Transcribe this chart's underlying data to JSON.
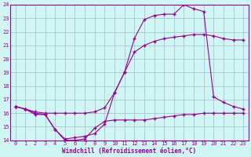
{
  "xlabel": "Windchill (Refroidissement éolien,°C)",
  "xlim": [
    -0.5,
    23.5
  ],
  "ylim": [
    14,
    24
  ],
  "yticks": [
    14,
    15,
    16,
    17,
    18,
    19,
    20,
    21,
    22,
    23,
    24
  ],
  "xticks": [
    0,
    1,
    2,
    3,
    4,
    5,
    6,
    7,
    8,
    9,
    10,
    11,
    12,
    13,
    14,
    15,
    16,
    17,
    18,
    19,
    20,
    21,
    22,
    23
  ],
  "line_color": "#990099",
  "background_color": "#cff5f5",
  "grid_color": "#a8b8cc",
  "line1_x": [
    0,
    1,
    2,
    3,
    4,
    5,
    6,
    7,
    8,
    9,
    10,
    11,
    12,
    13,
    14,
    15,
    16,
    17,
    18,
    19,
    20,
    21,
    22,
    23
  ],
  "line1_y": [
    16.5,
    16.3,
    15.9,
    15.9,
    14.8,
    14.0,
    14.0,
    14.1,
    14.9,
    15.4,
    15.5,
    15.5,
    15.5,
    15.5,
    15.6,
    15.7,
    15.8,
    15.9,
    15.9,
    16.0,
    16.0,
    16.0,
    16.0,
    16.0
  ],
  "line2_x": [
    0,
    1,
    2,
    3,
    4,
    5,
    6,
    7,
    8,
    9,
    10,
    11,
    12,
    13,
    14,
    15,
    16,
    17,
    18,
    19,
    20,
    21,
    22,
    23
  ],
  "line2_y": [
    16.5,
    16.3,
    16.1,
    16.0,
    16.0,
    16.0,
    16.0,
    16.0,
    16.1,
    16.4,
    17.5,
    19.0,
    20.5,
    21.0,
    21.3,
    21.5,
    21.6,
    21.7,
    21.8,
    21.8,
    21.7,
    21.5,
    21.4,
    21.4
  ],
  "line3_x": [
    0,
    1,
    2,
    3,
    4,
    5,
    6,
    7,
    8,
    9,
    10,
    11,
    12,
    13,
    14,
    15,
    16,
    17,
    18,
    19,
    20,
    21,
    22,
    23
  ],
  "line3_y": [
    16.5,
    16.3,
    16.0,
    15.9,
    14.8,
    14.1,
    14.2,
    14.3,
    14.5,
    15.2,
    17.5,
    19.0,
    21.5,
    22.9,
    23.2,
    23.3,
    23.3,
    24.0,
    23.7,
    23.5,
    17.2,
    16.8,
    16.5,
    16.3
  ]
}
